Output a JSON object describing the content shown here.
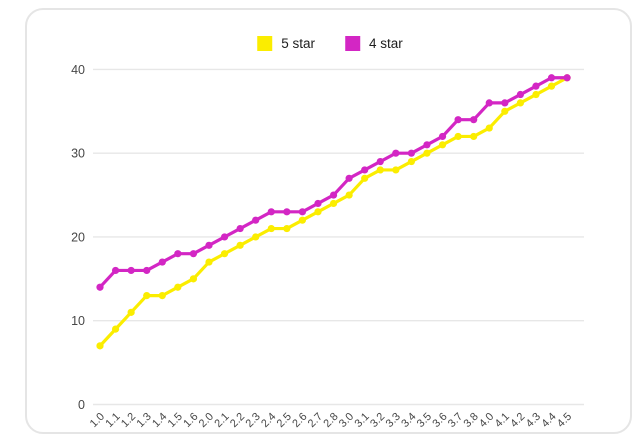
{
  "page": {
    "background_color": "#ffffff",
    "card_border_color": "#e5e5e5"
  },
  "legend": {
    "items": [
      {
        "label": "5 star",
        "color": "#fbed00"
      },
      {
        "label": "4 star",
        "color": "#d326c4"
      }
    ]
  },
  "chart_data": {
    "type": "line",
    "title": "",
    "xlabel": "",
    "ylabel": "",
    "categories": [
      "1.0",
      "1.1",
      "1.2",
      "1.3",
      "1.4",
      "1.5",
      "1.6",
      "2.0",
      "2.1",
      "2.2",
      "2.3",
      "2.4",
      "2.5",
      "2.6",
      "2.7",
      "2.8",
      "3.0",
      "3.1",
      "3.2",
      "3.3",
      "3.4",
      "3.5",
      "3.6",
      "3.7",
      "3.8",
      "4.0",
      "4.1",
      "4.2",
      "4.3",
      "4.4",
      "4.5"
    ],
    "series": [
      {
        "name": "5 star",
        "color": "#fbed00",
        "values": [
          7,
          9,
          11,
          13,
          13,
          14,
          15,
          17,
          18,
          19,
          20,
          21,
          21,
          22,
          23,
          24,
          25,
          27,
          28,
          28,
          29,
          30,
          31,
          32,
          32,
          33,
          35,
          36,
          37,
          38,
          39
        ]
      },
      {
        "name": "4 star",
        "color": "#d326c4",
        "values": [
          14,
          16,
          16,
          16,
          17,
          18,
          18,
          19,
          20,
          21,
          22,
          23,
          23,
          23,
          24,
          25,
          27,
          28,
          29,
          30,
          30,
          31,
          32,
          34,
          34,
          36,
          36,
          37,
          38,
          39,
          39
        ]
      }
    ],
    "ylim": [
      0,
      40
    ],
    "yticks": [
      0,
      10,
      20,
      30,
      40
    ],
    "grid": "horizontal",
    "gridline_color": "#e7e7e7",
    "tick_label_color": "#474747",
    "legend_position": "top-center",
    "x_label_rotation_deg": -45
  }
}
